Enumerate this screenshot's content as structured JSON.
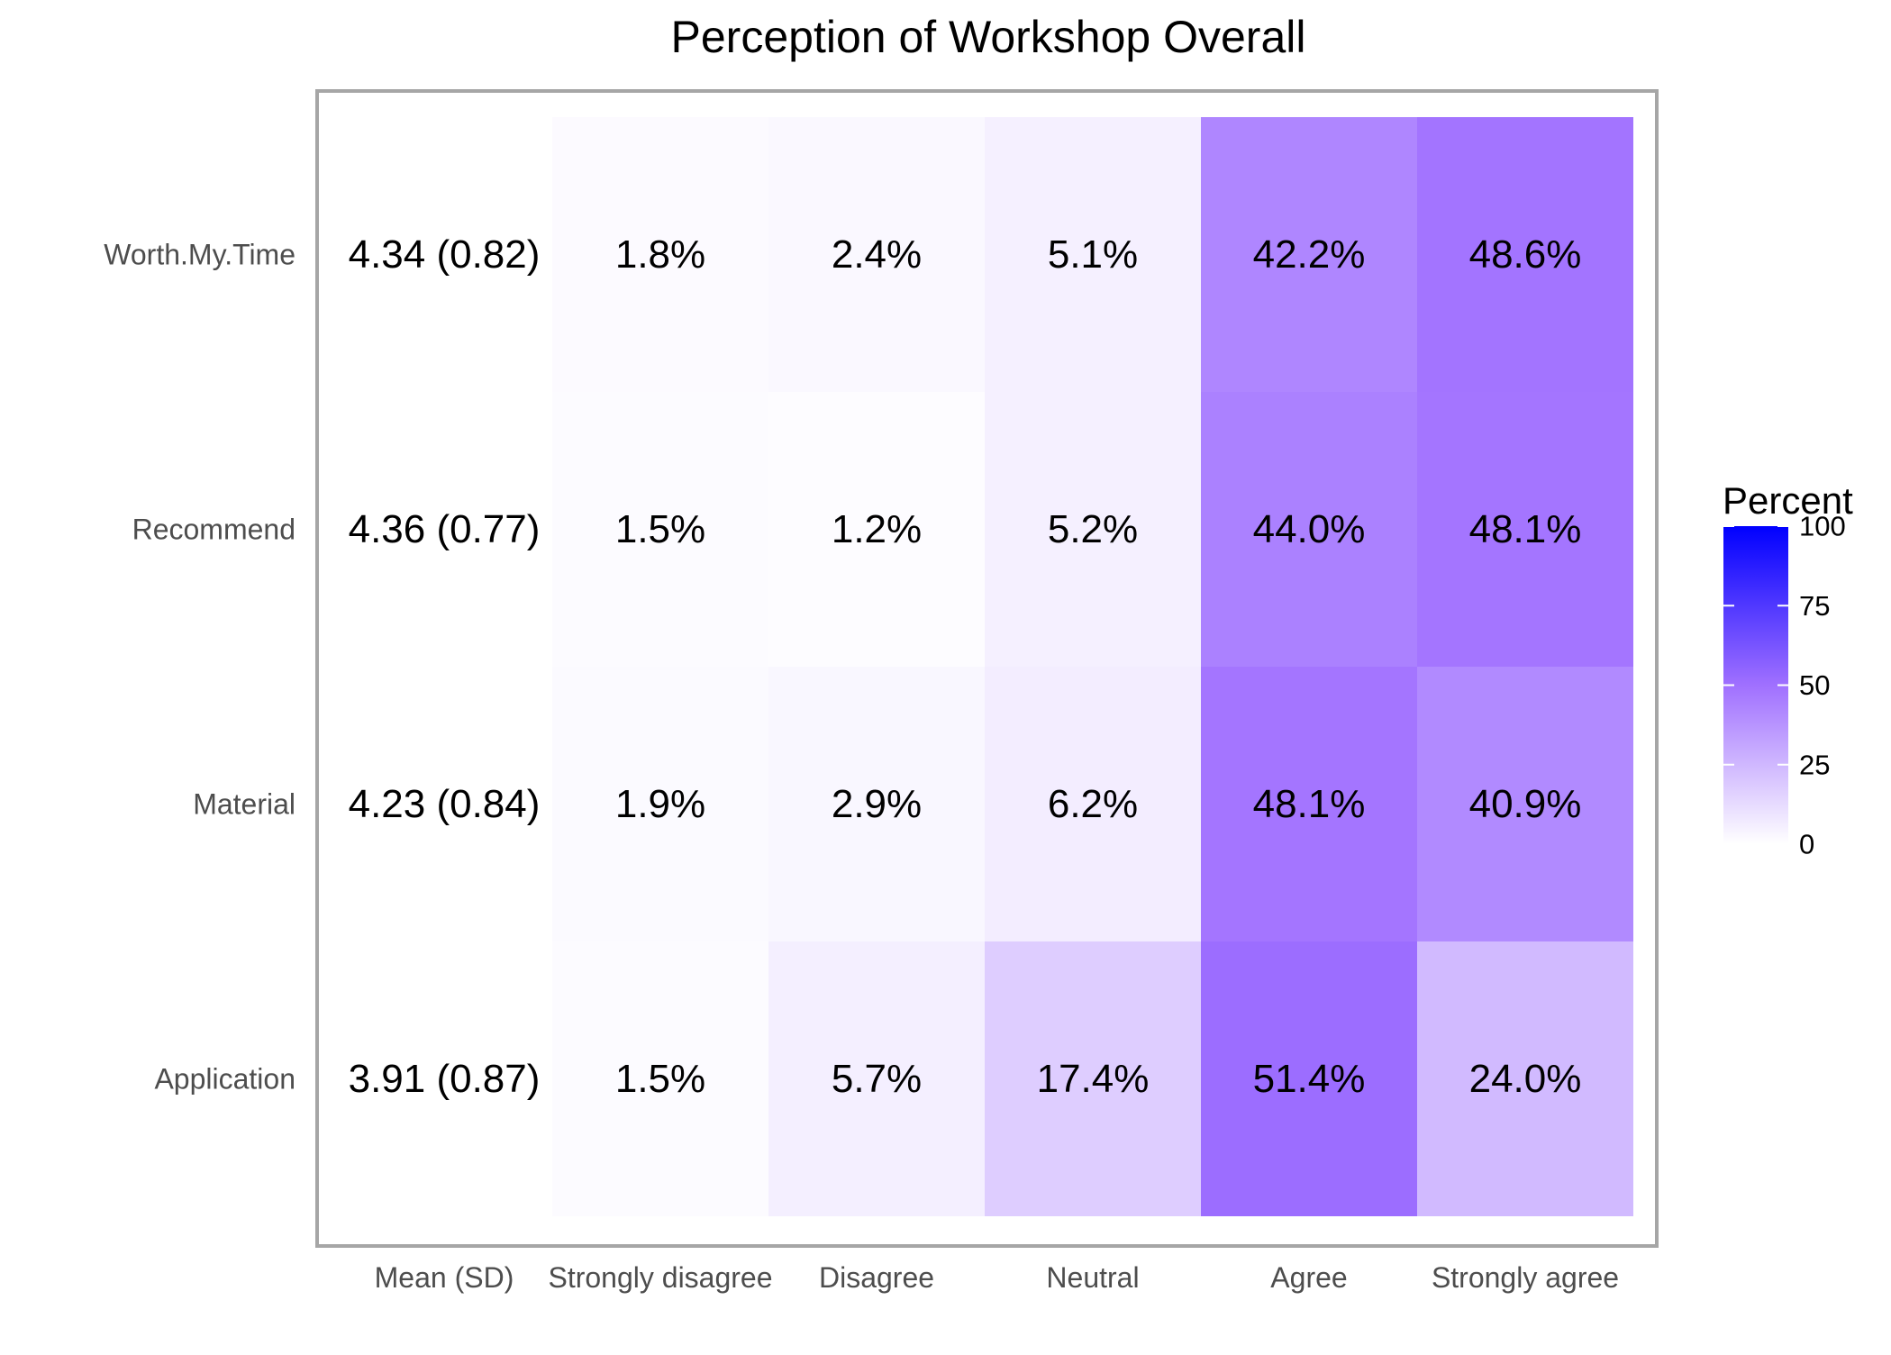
{
  "chart_data": {
    "type": "heatmap",
    "title": "Perception of Workshop Overall",
    "xlabel": "",
    "ylabel": "",
    "columns": [
      "Mean (SD)",
      "Strongly disagree",
      "Disagree",
      "Neutral",
      "Agree",
      "Strongly agree"
    ],
    "rows": [
      "Worth.My.Time",
      "Recommend",
      "Material",
      "Application"
    ],
    "mean_sd": [
      "4.34 (0.82)",
      "4.36 (0.77)",
      "4.23 (0.84)",
      "3.91 (0.87)"
    ],
    "values": [
      [
        1.8,
        2.4,
        5.1,
        42.2,
        48.6
      ],
      [
        1.5,
        1.2,
        5.2,
        44.0,
        48.1
      ],
      [
        1.9,
        2.9,
        6.2,
        48.1,
        40.9
      ],
      [
        1.5,
        5.7,
        17.4,
        51.4,
        24.0
      ]
    ],
    "value_suffix": "%",
    "legend": {
      "title": "Percent",
      "ticks": [
        0,
        25,
        50,
        75,
        100
      ],
      "range": [
        0,
        100
      ],
      "position": "right"
    },
    "colors": {
      "low": "#ffffff",
      "mid": "#a070ff",
      "high": "#0000ff",
      "frame": "#a6a6a6",
      "text": "#000000",
      "axis_text": "#4d4d4d"
    }
  }
}
